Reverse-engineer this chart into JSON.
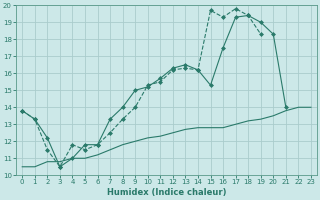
{
  "xlabel": "Humidex (Indice chaleur)",
  "xlim": [
    -0.5,
    23.5
  ],
  "ylim": [
    10,
    20
  ],
  "background_color": "#cce8e8",
  "grid_color": "#aacccc",
  "line_color": "#2a7a6a",
  "series1_x": [
    0,
    1,
    2,
    3,
    4,
    5,
    6,
    7,
    8,
    9,
    10,
    11,
    12,
    13,
    14,
    15,
    16,
    17,
    18,
    19,
    20,
    21,
    22,
    23
  ],
  "series1_y": [
    13.8,
    13.3,
    11.5,
    10.5,
    11.8,
    11.5,
    11.8,
    12.5,
    13.3,
    14.0,
    15.3,
    15.5,
    16.2,
    16.3,
    16.2,
    19.7,
    19.3,
    19.8,
    19.4,
    18.3,
    null,
    null,
    null,
    null
  ],
  "series2_x": [
    0,
    1,
    2,
    3,
    4,
    5,
    6,
    7,
    8,
    9,
    10,
    11,
    12,
    13,
    14,
    15,
    16,
    17,
    18,
    19,
    20,
    21,
    22,
    23
  ],
  "series2_y": [
    13.8,
    13.3,
    12.2,
    10.5,
    11.0,
    11.8,
    11.8,
    13.3,
    14.0,
    15.0,
    15.2,
    15.7,
    16.3,
    16.5,
    16.2,
    15.3,
    17.5,
    19.3,
    19.4,
    19.0,
    18.3,
    14.0,
    null,
    null
  ],
  "series3_x": [
    0,
    1,
    2,
    3,
    4,
    5,
    6,
    7,
    8,
    9,
    10,
    11,
    12,
    13,
    14,
    15,
    16,
    17,
    18,
    19,
    20,
    21,
    22,
    23
  ],
  "series3_y": [
    10.5,
    10.5,
    10.8,
    10.8,
    11.0,
    11.0,
    11.2,
    11.5,
    11.8,
    12.0,
    12.2,
    12.3,
    12.5,
    12.7,
    12.8,
    12.8,
    12.8,
    13.0,
    13.2,
    13.3,
    13.5,
    13.8,
    14.0,
    14.0
  ],
  "yticks": [
    10,
    11,
    12,
    13,
    14,
    15,
    16,
    17,
    18,
    19,
    20
  ],
  "xticks": [
    0,
    1,
    2,
    3,
    4,
    5,
    6,
    7,
    8,
    9,
    10,
    11,
    12,
    13,
    14,
    15,
    16,
    17,
    18,
    19,
    20,
    21,
    22,
    23
  ]
}
